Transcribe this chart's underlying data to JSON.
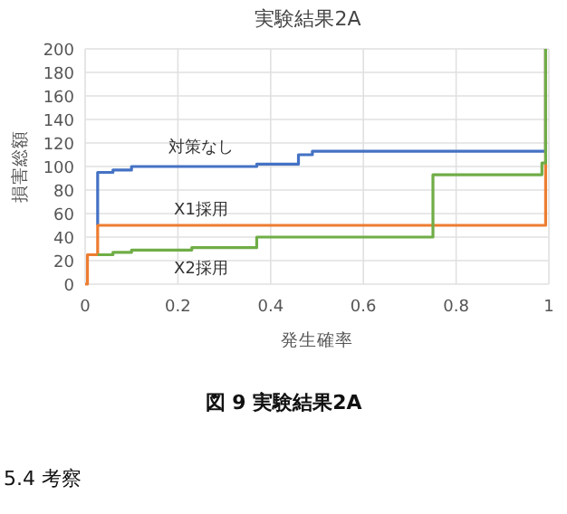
{
  "chart_data": {
    "type": "step",
    "title": "実験結果2A",
    "xlabel": "発生確率",
    "ylabel": "損害総額",
    "xlim": [
      0,
      1
    ],
    "xticks": [
      0,
      0.2,
      0.4,
      0.6,
      0.8,
      1
    ],
    "ylim": [
      0,
      200
    ],
    "yticks": [
      0,
      20,
      40,
      60,
      80,
      100,
      120,
      140,
      160,
      180,
      200
    ],
    "grid": true,
    "line_style": "solid",
    "series": [
      {
        "name": "対策なし",
        "color": "#4472c4",
        "x": [
          0.027,
          0.027,
          0.06,
          0.1,
          0.37,
          0.46,
          0.49,
          0.993
        ],
        "values": [
          50,
          95,
          97,
          100,
          102,
          110,
          113,
          200
        ]
      },
      {
        "name": "X1採用",
        "color": "#ed7d31",
        "x": [
          0,
          0.005,
          0.027,
          0.993
        ],
        "values": [
          0,
          25,
          50,
          200
        ]
      },
      {
        "name": "X2採用",
        "color": "#70ad47",
        "x": [
          0.027,
          0.06,
          0.1,
          0.23,
          0.37,
          0.75,
          0.985,
          0.993
        ],
        "values": [
          25,
          27,
          29,
          31,
          40,
          93,
          103,
          200
        ]
      }
    ],
    "annotations": [
      "図 9 実験結果2A",
      "5.4 考察"
    ]
  }
}
